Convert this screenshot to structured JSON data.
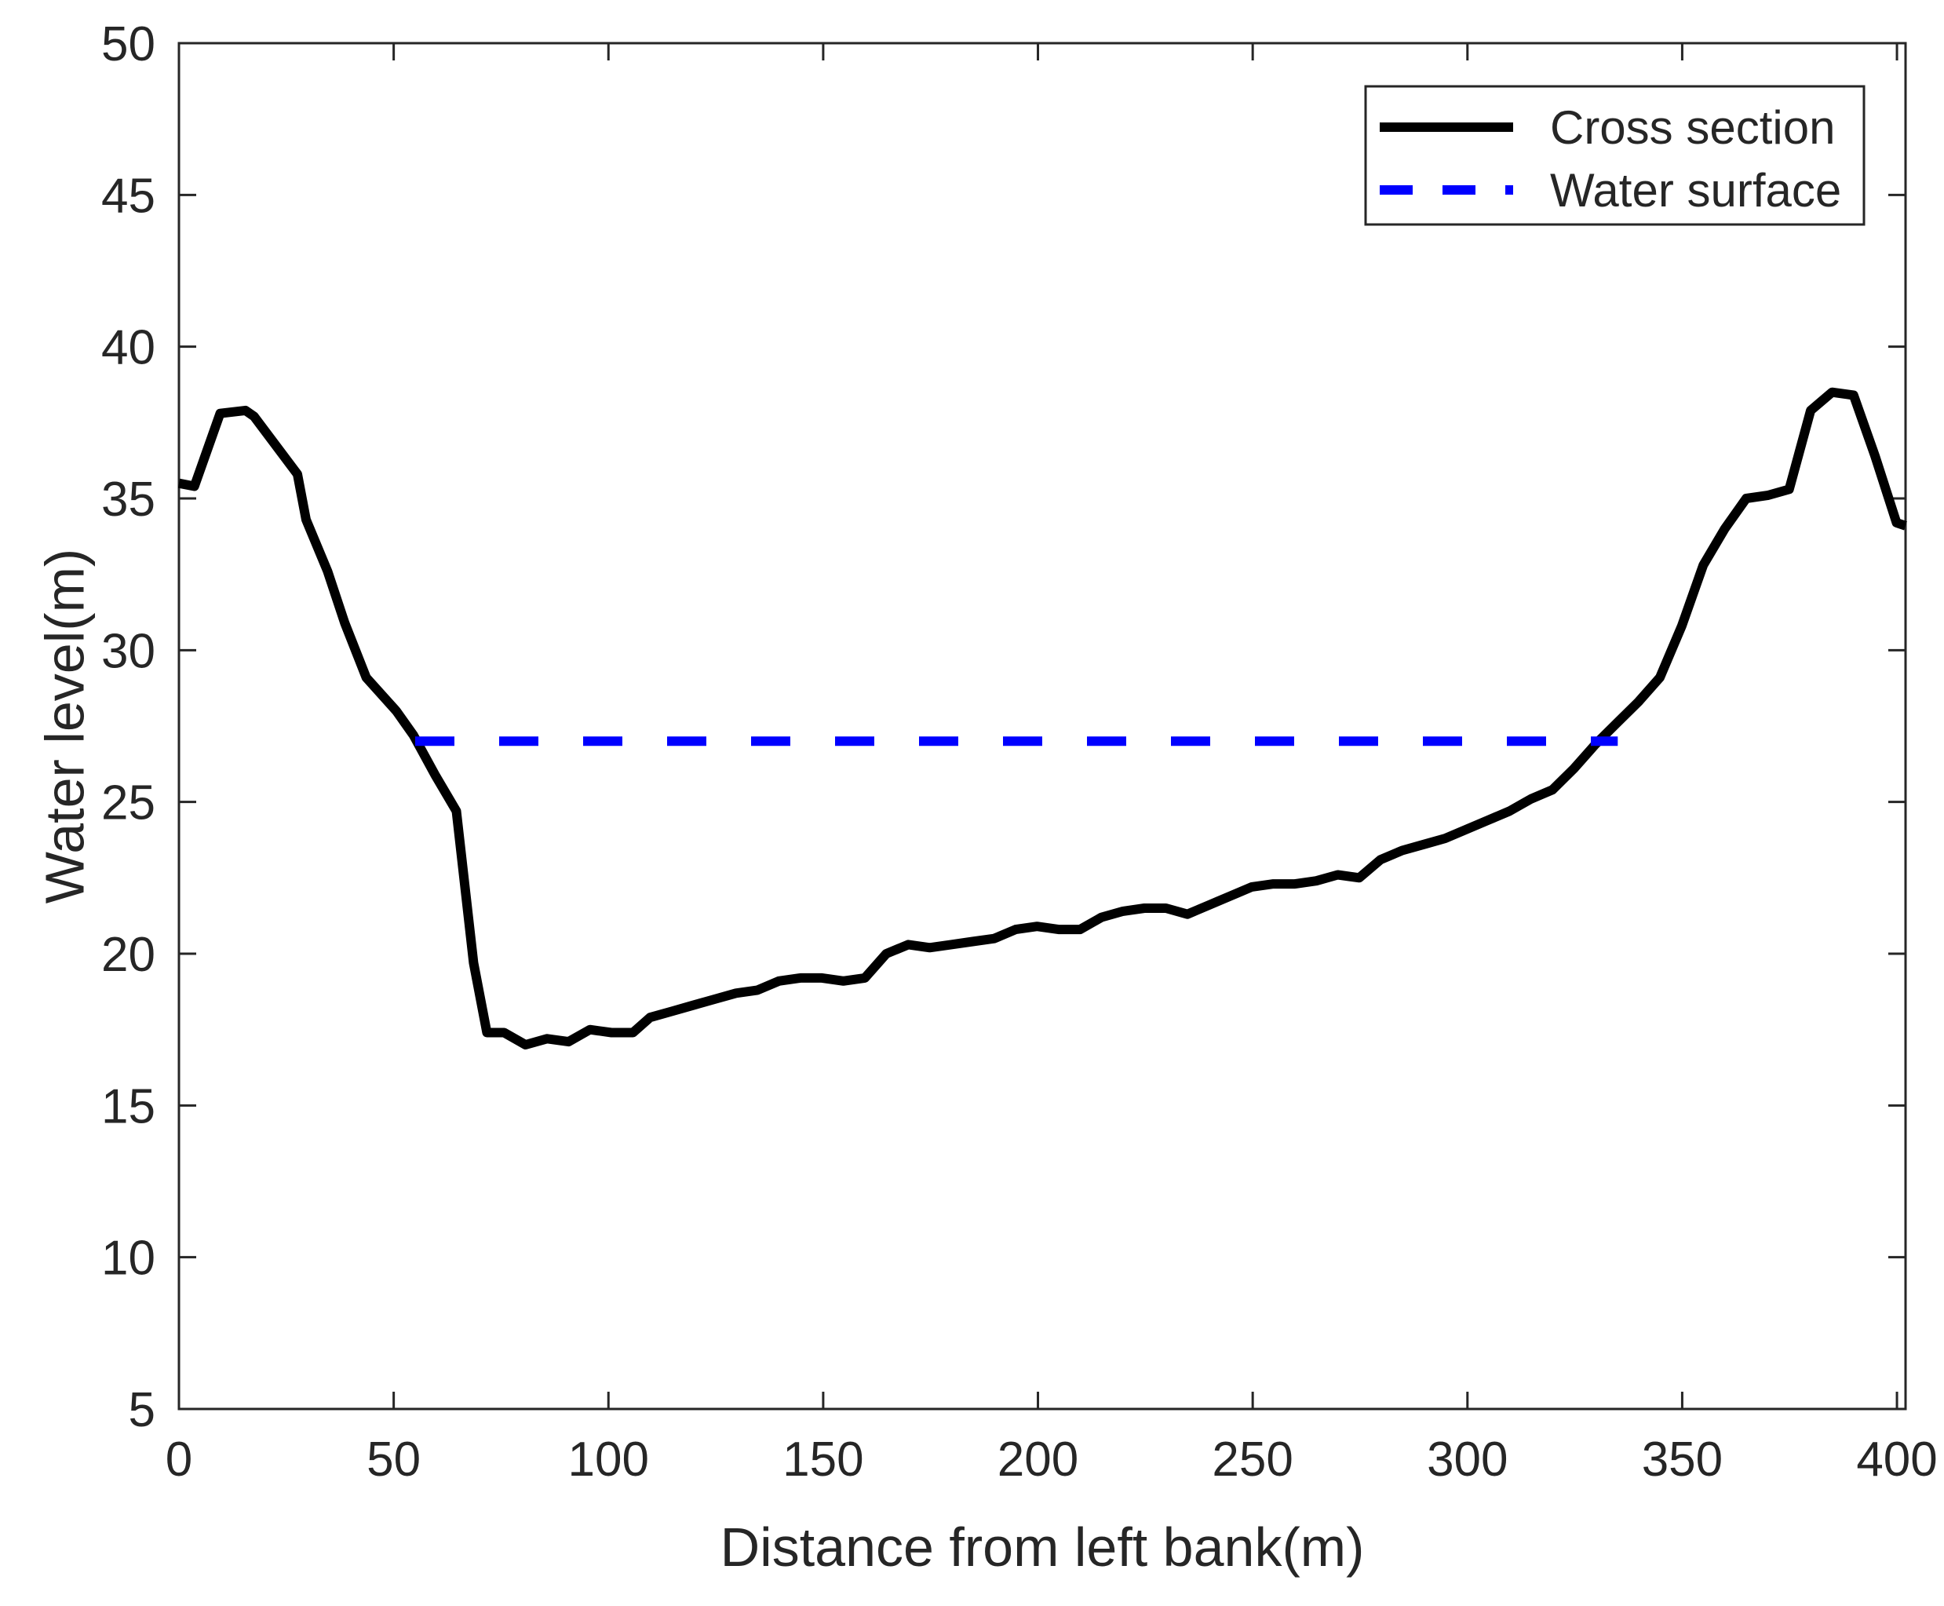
{
  "chart_data": {
    "type": "line",
    "xlabel": "Distance from left bank(m)",
    "ylabel": "Water level(m)",
    "xlim": [
      0,
      402
    ],
    "ylim": [
      5,
      50
    ],
    "xticks": [
      0,
      50,
      100,
      150,
      200,
      250,
      300,
      350,
      400
    ],
    "yticks": [
      5,
      10,
      15,
      20,
      25,
      30,
      35,
      40,
      45,
      50
    ],
    "xtick_labels": [
      "0",
      "50",
      "100",
      "150",
      "200",
      "250",
      "300",
      "350",
      "400"
    ],
    "ytick_labels": [
      "5",
      "10",
      "15",
      "20",
      "25",
      "30",
      "35",
      "40",
      "45",
      "50"
    ],
    "grid": false,
    "legend_position": "top-right",
    "series": [
      {
        "name": "Cross section",
        "color": "#000000",
        "style": "solid",
        "x": [
          0,
          3.6,
          9.6,
          15.5,
          17.5,
          27.6,
          29.6,
          34.6,
          38.6,
          43.6,
          50.6,
          54.6,
          59.6,
          64.6,
          68.6,
          71.7,
          75.7,
          80.7,
          85.7,
          90.7,
          95.7,
          100.7,
          105.7,
          109.7,
          114.7,
          119.7,
          124.7,
          129.7,
          134.7,
          139.7,
          144.7,
          149.7,
          154.7,
          159.7,
          164.7,
          169.8,
          174.8,
          179.8,
          184.8,
          189.8,
          194.8,
          199.8,
          204.8,
          209.8,
          214.8,
          219.8,
          224.8,
          229.8,
          234.8,
          239.8,
          244.8,
          249.8,
          254.8,
          259.8,
          264.8,
          269.8,
          274.8,
          279.8,
          284.8,
          289.8,
          294.8,
          299.8,
          304.8,
          309.8,
          314.8,
          319.8,
          324.8,
          329.8,
          334.8,
          339.8,
          344.8,
          349.9,
          354.9,
          359.9,
          364.9,
          369.9,
          374.9,
          379.9,
          384.9,
          389.9,
          394.9,
          399.9,
          402
        ],
        "y": [
          35.5,
          35.4,
          37.8,
          37.9,
          37.7,
          35.8,
          34.3,
          32.6,
          30.9,
          29.1,
          28.0,
          27.2,
          25.9,
          24.7,
          19.7,
          17.4,
          17.4,
          17.0,
          17.2,
          17.1,
          17.5,
          17.4,
          17.4,
          17.9,
          18.1,
          18.3,
          18.5,
          18.7,
          18.8,
          19.1,
          19.2,
          19.2,
          19.1,
          19.2,
          20.0,
          20.3,
          20.2,
          20.3,
          20.4,
          20.5,
          20.8,
          20.9,
          20.8,
          20.8,
          21.2,
          21.4,
          21.5,
          21.5,
          21.3,
          21.6,
          21.9,
          22.2,
          22.3,
          22.3,
          22.4,
          22.6,
          22.5,
          23.1,
          23.4,
          23.6,
          23.8,
          24.1,
          24.4,
          24.7,
          25.1,
          25.4,
          26.1,
          26.9,
          27.6,
          28.3,
          29.1,
          30.8,
          32.8,
          34.0,
          35.0,
          35.1,
          35.3,
          37.9,
          38.5,
          38.4,
          36.4,
          34.2,
          34.1
        ]
      },
      {
        "name": "Water surface",
        "color": "#0000ff",
        "style": "dashed",
        "x": [
          55,
          335
        ],
        "y": [
          27,
          27
        ]
      }
    ]
  }
}
